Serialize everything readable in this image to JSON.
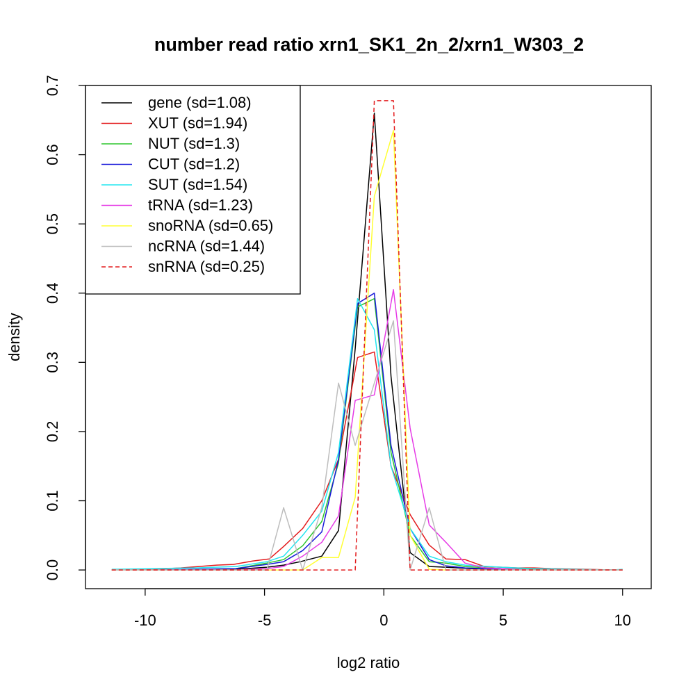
{
  "chart_data": {
    "type": "line",
    "title": "number read ratio xrn1_SK1_2n_2/xrn1_W303_2",
    "xlabel": "log2 ratio",
    "ylabel": "density",
    "xlim": [
      -12.5,
      11.2
    ],
    "ylim": [
      -0.027,
      0.7
    ],
    "x_ticks": [
      -10,
      -5,
      0,
      5,
      10
    ],
    "x_tick_labels": [
      "-10",
      "-5",
      "0",
      "5",
      "10"
    ],
    "y_ticks": [
      0.0,
      0.1,
      0.2,
      0.3,
      0.4,
      0.5,
      0.6,
      0.7
    ],
    "y_tick_labels": [
      "0.0",
      "0.1",
      "0.2",
      "0.3",
      "0.4",
      "0.5",
      "0.6",
      "0.7"
    ],
    "grid": false,
    "legend_position": "top-left",
    "series": [
      {
        "name": "gene (sd=1.08)",
        "color": "#000000",
        "dash": "solid",
        "x": [
          -11.4,
          -9.6,
          -7.9,
          -6.2,
          -4.9,
          -4.2,
          -3.5,
          -2.6,
          -1.9,
          -1.2,
          -0.4,
          0.3,
          1.1,
          1.9,
          2.6,
          3.6,
          4.9,
          6.2,
          7.9,
          9.6,
          10.0
        ],
        "y": [
          0.0,
          0.0,
          0.0,
          0.001,
          0.004,
          0.007,
          0.012,
          0.02,
          0.057,
          0.32,
          0.66,
          0.28,
          0.025,
          0.005,
          0.004,
          0.002,
          0.001,
          0.0,
          0.0,
          0.0,
          0.0
        ]
      },
      {
        "name": "XUT (sd=1.94)",
        "color": "#e31a1c",
        "dash": "solid",
        "x": [
          -11.4,
          -9.6,
          -8.5,
          -7.0,
          -6.3,
          -5.5,
          -4.8,
          -4.2,
          -3.4,
          -2.6,
          -1.9,
          -1.1,
          -0.4,
          0.3,
          1.1,
          1.9,
          2.6,
          3.4,
          4.2,
          4.9,
          5.6,
          6.3,
          7.0,
          8.5,
          9.6,
          10.0
        ],
        "y": [
          0.0,
          0.001,
          0.003,
          0.007,
          0.008,
          0.013,
          0.016,
          0.034,
          0.06,
          0.1,
          0.16,
          0.307,
          0.315,
          0.15,
          0.08,
          0.036,
          0.016,
          0.015,
          0.005,
          0.004,
          0.003,
          0.003,
          0.002,
          0.001,
          0.0,
          0.0
        ]
      },
      {
        "name": "NUT (sd=1.3)",
        "color": "#2dc52d",
        "dash": "solid",
        "x": [
          -11.4,
          -9.6,
          -7.9,
          -6.2,
          -4.9,
          -4.2,
          -3.4,
          -2.6,
          -1.9,
          -1.1,
          -0.4,
          0.3,
          1.1,
          1.9,
          2.6,
          3.4,
          4.9,
          6.2,
          7.9,
          9.6,
          10.0
        ],
        "y": [
          0.0,
          0.0,
          0.001,
          0.002,
          0.01,
          0.015,
          0.035,
          0.07,
          0.155,
          0.38,
          0.392,
          0.17,
          0.05,
          0.012,
          0.01,
          0.005,
          0.002,
          0.001,
          0.0,
          0.0,
          0.0
        ]
      },
      {
        "name": "CUT (sd=1.2)",
        "color": "#1a1ad9",
        "dash": "solid",
        "x": [
          -11.4,
          -9.6,
          -7.9,
          -6.2,
          -4.9,
          -4.2,
          -3.4,
          -2.6,
          -1.9,
          -1.1,
          -0.4,
          0.3,
          1.1,
          1.9,
          2.6,
          3.4,
          4.9,
          6.2,
          7.9,
          9.6,
          10.0
        ],
        "y": [
          0.0,
          0.0,
          0.001,
          0.002,
          0.008,
          0.012,
          0.028,
          0.055,
          0.16,
          0.385,
          0.4,
          0.18,
          0.06,
          0.015,
          0.006,
          0.003,
          0.001,
          0.0,
          0.0,
          0.0,
          0.0
        ]
      },
      {
        "name": "SUT (sd=1.54)",
        "color": "#22e5f0",
        "dash": "solid",
        "x": [
          -11.4,
          -9.6,
          -7.9,
          -6.2,
          -4.9,
          -4.2,
          -3.4,
          -2.6,
          -1.9,
          -1.1,
          -0.4,
          0.3,
          1.1,
          1.9,
          2.6,
          3.4,
          4.9,
          6.2,
          7.9,
          9.6,
          10.0
        ],
        "y": [
          0.001,
          0.002,
          0.003,
          0.005,
          0.012,
          0.02,
          0.05,
          0.085,
          0.17,
          0.392,
          0.347,
          0.15,
          0.06,
          0.02,
          0.012,
          0.007,
          0.004,
          0.002,
          0.001,
          0.0,
          0.001
        ]
      },
      {
        "name": "tRNA (sd=1.23)",
        "color": "#e63ae6",
        "dash": "solid",
        "x": [
          -11.4,
          -9.6,
          -7.9,
          -6.2,
          -4.9,
          -4.2,
          -3.4,
          -2.6,
          -1.9,
          -1.2,
          -0.4,
          0.4,
          1.1,
          1.9,
          2.6,
          3.4,
          4.2,
          4.9,
          6.2,
          7.9,
          9.6,
          10.0
        ],
        "y": [
          0.0,
          0.0,
          0.0,
          0.0,
          0.002,
          0.005,
          0.02,
          0.04,
          0.078,
          0.245,
          0.253,
          0.405,
          0.205,
          0.065,
          0.04,
          0.01,
          0.003,
          0.002,
          0.0,
          0.0,
          0.0,
          0.0
        ]
      },
      {
        "name": "snoRNA (sd=0.65)",
        "color": "#ffff33",
        "dash": "solid",
        "x": [
          -11.4,
          -9.6,
          -7.9,
          -6.2,
          -4.9,
          -4.2,
          -3.4,
          -2.6,
          -1.9,
          -1.2,
          -0.4,
          0.4,
          1.1,
          1.9,
          2.6,
          3.4,
          4.9,
          6.2,
          7.9,
          9.6,
          10.0
        ],
        "y": [
          0.0,
          0.0,
          0.0,
          0.0,
          0.0,
          0.0,
          0.0,
          0.018,
          0.018,
          0.105,
          0.54,
          0.635,
          0.05,
          0.001,
          0.0,
          0.0,
          0.0,
          0.0,
          0.0,
          0.0,
          0.0
        ]
      },
      {
        "name": "ncRNA (sd=1.44)",
        "color": "#bdbdbd",
        "dash": "solid",
        "x": [
          -11.4,
          -9.6,
          -7.9,
          -6.2,
          -4.9,
          -4.2,
          -3.4,
          -2.6,
          -1.9,
          -1.2,
          -0.4,
          0.4,
          1.1,
          1.9,
          2.6,
          3.4,
          4.9,
          6.2,
          7.9,
          9.6,
          10.0
        ],
        "y": [
          0.0,
          0.0,
          0.0,
          0.0,
          0.0,
          0.09,
          0.0,
          0.09,
          0.27,
          0.18,
          0.27,
          0.36,
          0.0,
          0.09,
          0.0,
          0.0,
          0.0,
          0.0,
          0.0,
          0.0,
          0.0
        ]
      },
      {
        "name": "snRNA (sd=0.25)",
        "color": "#e31a1c",
        "dash": "dashed",
        "x": [
          -11.4,
          -9.6,
          -7.9,
          -6.2,
          -4.9,
          -4.2,
          -3.4,
          -2.6,
          -1.9,
          -1.2,
          -0.4,
          0.4,
          1.1,
          1.9,
          2.6,
          3.4,
          4.9,
          6.2,
          7.9,
          9.6,
          10.0
        ],
        "y": [
          0.0,
          0.0,
          0.0,
          0.0,
          0.0,
          0.0,
          0.0,
          0.0,
          0.0,
          0.0,
          0.678,
          0.678,
          0.0,
          0.0,
          0.0,
          0.0,
          0.0,
          0.0,
          0.0,
          0.0,
          0.0
        ]
      }
    ]
  }
}
